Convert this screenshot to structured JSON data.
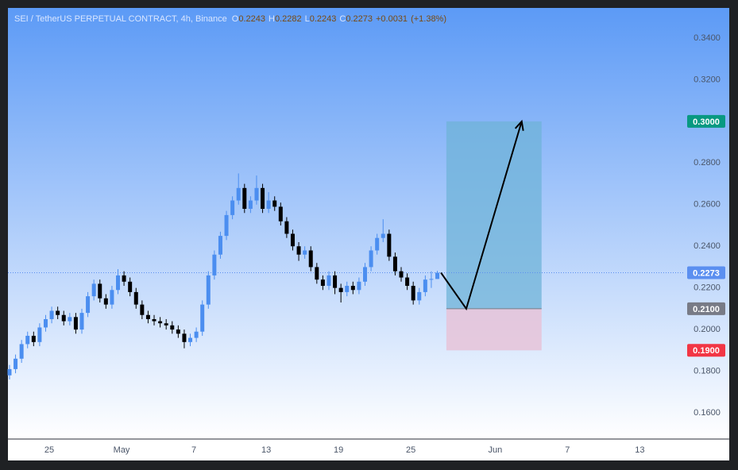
{
  "chart_data": {
    "type": "candlestick",
    "title": "SEI / TetherUS PERPETUAL CONTRACT, 4h, Binance",
    "ohlc_letters": [
      "O",
      "H",
      "L",
      "C"
    ],
    "change": {
      "value": 0.0031,
      "label": "+0.0031"
    },
    "change_pct": {
      "value": 1.38,
      "label": "(+1.38%)"
    },
    "open": [
      0.178,
      0.181,
      0.186,
      0.193,
      0.197,
      0.194,
      0.201,
      0.205,
      0.209,
      0.207,
      0.204,
      0.206,
      0.2,
      0.208,
      0.216,
      0.222,
      0.215,
      0.212,
      0.219,
      0.226,
      0.223,
      0.218,
      0.212,
      0.207,
      0.205,
      0.204,
      0.203,
      0.202,
      0.2,
      0.198,
      0.194,
      0.196,
      0.199,
      0.212,
      0.226,
      0.236,
      0.245,
      0.255,
      0.262,
      0.268,
      0.258,
      0.262,
      0.268,
      0.258,
      0.262,
      0.259,
      0.252,
      0.246,
      0.24,
      0.236,
      0.238,
      0.23,
      0.224,
      0.221,
      0.226,
      0.22,
      0.218,
      0.221,
      0.219,
      0.223,
      0.23,
      0.238,
      0.244,
      0.246,
      0.235,
      0.228,
      0.225,
      0.221,
      0.214,
      0.218,
      0.224,
      0.2243
    ],
    "high": [
      0.183,
      0.188,
      0.195,
      0.199,
      0.199,
      0.203,
      0.207,
      0.211,
      0.211,
      0.209,
      0.208,
      0.208,
      0.21,
      0.218,
      0.224,
      0.224,
      0.217,
      0.221,
      0.229,
      0.228,
      0.225,
      0.22,
      0.214,
      0.209,
      0.207,
      0.206,
      0.205,
      0.204,
      0.202,
      0.2,
      0.198,
      0.201,
      0.214,
      0.228,
      0.238,
      0.247,
      0.257,
      0.264,
      0.275,
      0.27,
      0.264,
      0.274,
      0.27,
      0.266,
      0.264,
      0.261,
      0.254,
      0.248,
      0.242,
      0.24,
      0.24,
      0.232,
      0.226,
      0.228,
      0.228,
      0.222,
      0.223,
      0.223,
      0.225,
      0.232,
      0.24,
      0.246,
      0.253,
      0.248,
      0.237,
      0.23,
      0.227,
      0.223,
      0.22,
      0.226,
      0.228,
      0.2282
    ],
    "low": [
      0.176,
      0.179,
      0.184,
      0.191,
      0.192,
      0.192,
      0.199,
      0.203,
      0.205,
      0.202,
      0.202,
      0.198,
      0.198,
      0.206,
      0.214,
      0.213,
      0.21,
      0.21,
      0.217,
      0.221,
      0.216,
      0.21,
      0.205,
      0.203,
      0.202,
      0.201,
      0.2,
      0.198,
      0.196,
      0.191,
      0.192,
      0.194,
      0.197,
      0.21,
      0.224,
      0.234,
      0.243,
      0.253,
      0.26,
      0.256,
      0.256,
      0.26,
      0.256,
      0.256,
      0.257,
      0.25,
      0.244,
      0.238,
      0.233,
      0.234,
      0.228,
      0.222,
      0.219,
      0.219,
      0.217,
      0.213,
      0.216,
      0.217,
      0.217,
      0.221,
      0.228,
      0.236,
      0.242,
      0.233,
      0.226,
      0.223,
      0.219,
      0.212,
      0.212,
      0.216,
      0.22,
      0.2243
    ],
    "close": [
      0.181,
      0.186,
      0.193,
      0.197,
      0.194,
      0.201,
      0.205,
      0.209,
      0.207,
      0.204,
      0.206,
      0.2,
      0.208,
      0.216,
      0.222,
      0.215,
      0.212,
      0.219,
      0.226,
      0.223,
      0.218,
      0.212,
      0.207,
      0.205,
      0.204,
      0.203,
      0.202,
      0.2,
      0.198,
      0.194,
      0.196,
      0.199,
      0.212,
      0.226,
      0.236,
      0.245,
      0.255,
      0.262,
      0.268,
      0.258,
      0.262,
      0.268,
      0.258,
      0.262,
      0.259,
      0.252,
      0.246,
      0.24,
      0.236,
      0.238,
      0.23,
      0.224,
      0.221,
      0.226,
      0.22,
      0.218,
      0.221,
      0.219,
      0.223,
      0.23,
      0.238,
      0.244,
      0.246,
      0.235,
      0.228,
      0.225,
      0.221,
      0.214,
      0.218,
      0.224,
      0.2243,
      0.2273
    ],
    "up_color": "#4b8ef0",
    "down_color": "#000000",
    "xlim": [
      -0.26,
      111.8
    ],
    "xticks": [
      {
        "value": 6.6,
        "label": "25"
      },
      {
        "value": 18.6,
        "label": "May"
      },
      {
        "value": 30.6,
        "label": "7"
      },
      {
        "value": 42.6,
        "label": "13"
      },
      {
        "value": 54.6,
        "label": "19"
      },
      {
        "value": 66.6,
        "label": "25"
      },
      {
        "value": 80.6,
        "label": "Jun"
      },
      {
        "value": 92.6,
        "label": "7"
      },
      {
        "value": 104.6,
        "label": "13"
      }
    ],
    "ylim": [
      0.1474,
      0.3545
    ],
    "yticks": [
      {
        "value": 0.34,
        "label": "0.3400"
      },
      {
        "value": 0.32,
        "label": "0.3200"
      },
      {
        "value": 0.28,
        "label": "0.2800"
      },
      {
        "value": 0.26,
        "label": "0.2600"
      },
      {
        "value": 0.24,
        "label": "0.2400"
      },
      {
        "value": 0.22,
        "label": "0.2200"
      },
      {
        "value": 0.2,
        "label": "0.2000"
      },
      {
        "value": 0.18,
        "label": "0.1800"
      },
      {
        "value": 0.16,
        "label": "0.1600"
      }
    ],
    "last_price": {
      "value": 0.2273,
      "label": "0.2273",
      "color": "#5b8ff0"
    },
    "position": {
      "x_range": [
        72.5,
        88.3
      ],
      "target": {
        "value": 0.3,
        "label": "0.3000",
        "color": "#089981"
      },
      "entry": {
        "value": 0.21,
        "label": "0.2100",
        "color": "#787b86"
      },
      "stop": {
        "value": 0.19,
        "label": "0.1900",
        "color": "#f23645"
      },
      "profit_color": "#6fb3d8",
      "loss_color": "#e6c3d8"
    },
    "arrow": {
      "x": [
        71.6,
        75.8,
        85.0
      ],
      "y": [
        0.2273,
        0.21,
        0.3
      ],
      "color": "#000000"
    }
  }
}
